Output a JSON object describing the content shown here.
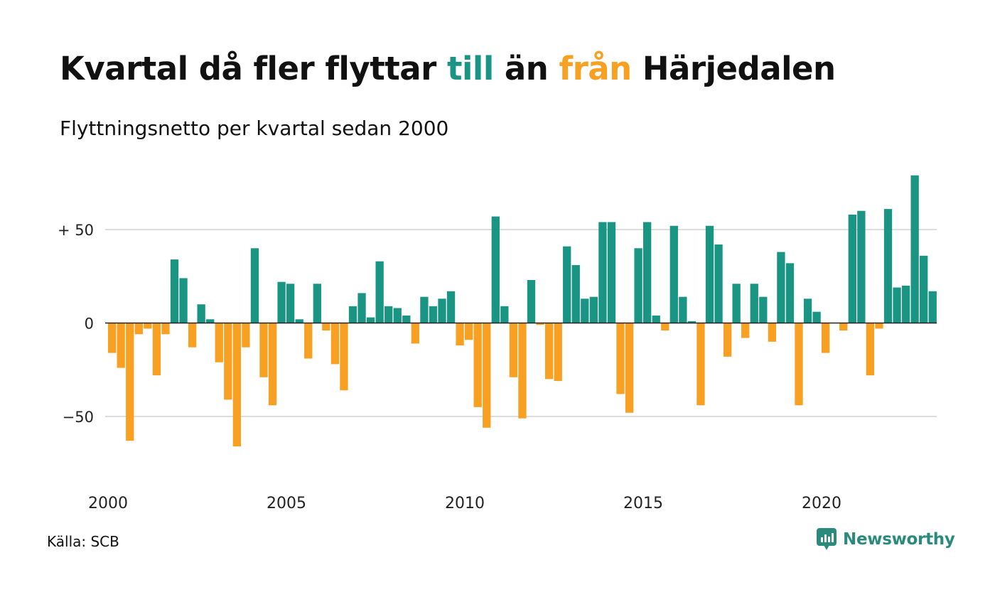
{
  "title": {
    "part1": "Kvartal då fler flyttar ",
    "part2": "till",
    "part3": " än ",
    "part4": "från",
    "part5": " Härjedalen"
  },
  "subtitle": "Flyttningsnetto per kvartal sedan 2000",
  "source": "Källa: SCB",
  "brand": "Newsworthy",
  "colors": {
    "positive": "#1a9583",
    "negative": "#f7a021",
    "grid": "#dddddd",
    "zero_line": "#222222"
  },
  "chart_data": {
    "type": "bar",
    "x_start": "2000 Q1",
    "values": [
      -16,
      -24,
      -63,
      -6,
      -3,
      -28,
      -6,
      34,
      24,
      -13,
      10,
      2,
      -21,
      -41,
      -66,
      -13,
      40,
      -29,
      -44,
      22,
      21,
      2,
      -19,
      21,
      -4,
      -22,
      -36,
      9,
      16,
      3,
      33,
      9,
      8,
      4,
      -11,
      14,
      9,
      13,
      17,
      -12,
      -9,
      -45,
      -56,
      57,
      9,
      -29,
      -51,
      23,
      -1,
      -30,
      -31,
      41,
      31,
      13,
      14,
      54,
      54,
      -38,
      -48,
      40,
      54,
      4,
      -4,
      52,
      14,
      1,
      -44,
      52,
      42,
      -18,
      21,
      -8,
      21,
      14,
      -10,
      38,
      32,
      -44,
      13,
      6,
      -16,
      0,
      -4,
      58,
      60,
      -28,
      -3,
      61,
      19,
      20,
      79,
      36,
      17
    ],
    "yticks": [
      {
        "value": 50,
        "label": "+ 50"
      },
      {
        "value": 0,
        "label": "0"
      },
      {
        "value": -50,
        "label": "−50"
      }
    ],
    "xticks": [
      {
        "year": 2000,
        "label": "2000"
      },
      {
        "year": 2005,
        "label": "2005"
      },
      {
        "year": 2010,
        "label": "2010"
      },
      {
        "year": 2015,
        "label": "2015"
      },
      {
        "year": 2020,
        "label": "2020"
      }
    ],
    "ylim": [
      -75,
      80
    ],
    "grid": true
  }
}
